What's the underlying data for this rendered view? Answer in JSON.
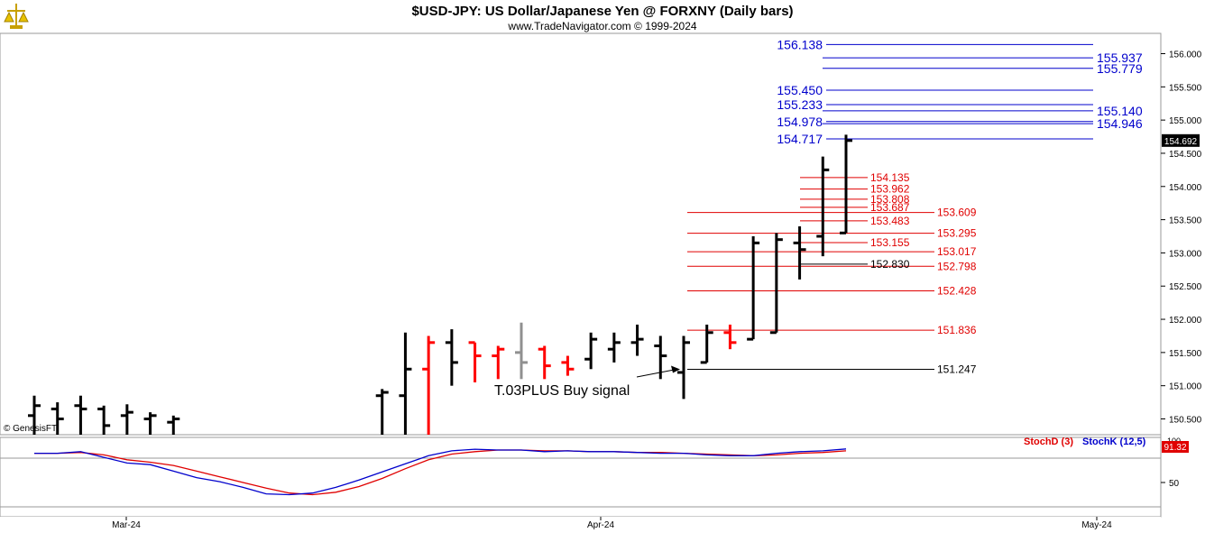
{
  "header": {
    "title": "$USD-JPY:  US Dollar/Japanese Yen @ FORXNY  (Daily bars)",
    "subtitle": "www.TradeNavigator.com © 1999-2024",
    "logo_icon": "trade-navigator-logo-icon"
  },
  "copyright": "© GenesisFT",
  "annotation": {
    "text": "T.03PLUS Buy signal"
  },
  "colors": {
    "up_bar": "#000000",
    "down_bar": "#ff0000",
    "neutral_bar": "#909090",
    "blue_levels": "#0000cc",
    "red_levels": "#e00000",
    "stoch_d": "#e00000",
    "stoch_k": "#0000cc",
    "last_price_bg": "#000000",
    "stoch_value_bg": "#e00000"
  },
  "chart_data": [
    {
      "type": "ohlc",
      "x_ticks": [
        "Mar-24",
        "Apr-24",
        "May-24"
      ],
      "y_ticks": [
        "150.500",
        "151.000",
        "151.500",
        "152.000",
        "152.500",
        "153.000",
        "153.500",
        "154.000",
        "154.500",
        "155.000",
        "155.500",
        "156.000"
      ],
      "ylim": [
        150.2,
        156.6
      ],
      "last_price": "154.692",
      "bars": [
        {
          "x": 1,
          "o": 150.55,
          "h": 150.85,
          "l": 150.2,
          "c": 150.7,
          "color": "up"
        },
        {
          "x": 2,
          "o": 150.65,
          "h": 150.75,
          "l": 150.2,
          "c": 150.5,
          "color": "up"
        },
        {
          "x": 3,
          "o": 150.7,
          "h": 150.85,
          "l": 150.2,
          "c": 150.65,
          "color": "up"
        },
        {
          "x": 4,
          "o": 150.65,
          "h": 150.7,
          "l": 150.2,
          "c": 150.4,
          "color": "up"
        },
        {
          "x": 5,
          "o": 150.55,
          "h": 150.72,
          "l": 150.2,
          "c": 150.6,
          "color": "up"
        },
        {
          "x": 6,
          "o": 150.5,
          "h": 150.6,
          "l": 150.2,
          "c": 150.55,
          "color": "up"
        },
        {
          "x": 7,
          "o": 150.45,
          "h": 150.55,
          "l": 150.2,
          "c": 150.5,
          "color": "up"
        },
        {
          "x": 16,
          "o": 150.85,
          "h": 150.95,
          "l": 150.2,
          "c": 150.9,
          "color": "up"
        },
        {
          "x": 17,
          "o": 150.85,
          "h": 151.8,
          "l": 150.2,
          "c": 151.25,
          "color": "up"
        },
        {
          "x": 18,
          "o": 151.25,
          "h": 151.75,
          "l": 150.2,
          "c": 151.65,
          "color": "down"
        },
        {
          "x": 19,
          "o": 151.65,
          "h": 151.85,
          "l": 151.0,
          "c": 151.35,
          "color": "up"
        },
        {
          "x": 20,
          "o": 151.65,
          "h": 151.65,
          "l": 151.05,
          "c": 151.45,
          "color": "down"
        },
        {
          "x": 21,
          "o": 151.45,
          "h": 151.6,
          "l": 151.1,
          "c": 151.55,
          "color": "down"
        },
        {
          "x": 22,
          "o": 151.5,
          "h": 151.95,
          "l": 151.1,
          "c": 151.35,
          "color": "neutral"
        },
        {
          "x": 23,
          "o": 151.55,
          "h": 151.6,
          "l": 151.1,
          "c": 151.3,
          "color": "down"
        },
        {
          "x": 24,
          "o": 151.35,
          "h": 151.45,
          "l": 151.15,
          "c": 151.25,
          "color": "down"
        },
        {
          "x": 25,
          "o": 151.4,
          "h": 151.8,
          "l": 151.25,
          "c": 151.7,
          "color": "up"
        },
        {
          "x": 26,
          "o": 151.55,
          "h": 151.8,
          "l": 151.35,
          "c": 151.65,
          "color": "up"
        },
        {
          "x": 27,
          "o": 151.65,
          "h": 151.92,
          "l": 151.45,
          "c": 151.7,
          "color": "up"
        },
        {
          "x": 28,
          "o": 151.6,
          "h": 151.75,
          "l": 151.1,
          "c": 151.45,
          "color": "up"
        },
        {
          "x": 29,
          "o": 151.2,
          "h": 151.75,
          "l": 150.8,
          "c": 151.65,
          "color": "up"
        },
        {
          "x": 30,
          "o": 151.35,
          "h": 151.92,
          "l": 151.35,
          "c": 151.8,
          "color": "up"
        },
        {
          "x": 31,
          "o": 151.8,
          "h": 151.92,
          "l": 151.55,
          "c": 151.65,
          "color": "down"
        },
        {
          "x": 32,
          "o": 151.7,
          "h": 153.25,
          "l": 151.7,
          "c": 153.15,
          "color": "up"
        },
        {
          "x": 33,
          "o": 151.8,
          "h": 153.3,
          "l": 151.8,
          "c": 153.2,
          "color": "up"
        },
        {
          "x": 34,
          "o": 153.15,
          "h": 153.4,
          "l": 152.6,
          "c": 153.05,
          "color": "up"
        },
        {
          "x": 35,
          "o": 153.25,
          "h": 154.45,
          "l": 152.95,
          "c": 154.25,
          "color": "up"
        },
        {
          "x": 36,
          "o": 153.3,
          "h": 154.78,
          "l": 153.3,
          "c": 154.692,
          "color": "up"
        }
      ],
      "buy_signal": {
        "x": 29,
        "y": 151.247
      },
      "blue_levels": [
        {
          "value": 156.138,
          "label": "156.138",
          "label_side": "left"
        },
        {
          "value": 155.937,
          "label": "155.937",
          "label_side": "right"
        },
        {
          "value": 155.779,
          "label": "155.779",
          "label_side": "right"
        },
        {
          "value": 155.45,
          "label": "155.450",
          "label_side": "left"
        },
        {
          "value": 155.233,
          "label": "155.233",
          "label_side": "left"
        },
        {
          "value": 155.14,
          "label": "155.140",
          "label_side": "right"
        },
        {
          "value": 154.978,
          "label": "154.978",
          "label_side": "left"
        },
        {
          "value": 154.946,
          "label": "154.946",
          "label_side": "right"
        },
        {
          "value": 154.717,
          "label": "154.717",
          "label_side": "left"
        }
      ],
      "red_levels": [
        {
          "value": 154.135,
          "label": "154.135",
          "group": "short"
        },
        {
          "value": 153.962,
          "label": "153.962",
          "group": "short"
        },
        {
          "value": 153.808,
          "label": "153.808",
          "group": "short"
        },
        {
          "value": 153.687,
          "label": "153.687",
          "group": "short"
        },
        {
          "value": 153.483,
          "label": "153.483",
          "group": "short"
        },
        {
          "value": 153.155,
          "label": "153.155",
          "group": "short"
        },
        {
          "value": 153.609,
          "label": "153.609",
          "group": "long"
        },
        {
          "value": 153.295,
          "label": "153.295",
          "group": "long"
        },
        {
          "value": 153.017,
          "label": "153.017",
          "group": "long"
        },
        {
          "value": 152.798,
          "label": "152.798",
          "group": "long"
        },
        {
          "value": 152.428,
          "label": "152.428",
          "group": "long"
        },
        {
          "value": 151.836,
          "label": "151.836",
          "group": "long"
        }
      ],
      "black_levels": [
        {
          "value": 152.83,
          "label": "152.830",
          "group": "short"
        },
        {
          "value": 151.247,
          "label": "151.247",
          "group": "long"
        }
      ]
    },
    {
      "type": "line",
      "title_d": "StochD (3)",
      "title_k": "StochK (12,5)",
      "y_ticks": [
        "50"
      ],
      "top_tick": "100",
      "value_label": "91.32",
      "ylim": [
        0,
        100
      ],
      "x": [
        1,
        2,
        3,
        4,
        5,
        6,
        7,
        8,
        9,
        10,
        11,
        12,
        13,
        14,
        15,
        16,
        17,
        18,
        19,
        20,
        21,
        22,
        23,
        24,
        25,
        26,
        27,
        28,
        29,
        30,
        31,
        32,
        33,
        34,
        35,
        36
      ],
      "series": [
        {
          "name": "StochD (3)",
          "values": [
            86,
            86,
            87,
            84,
            78,
            75,
            71,
            64,
            57,
            50,
            43,
            37,
            35,
            38,
            45,
            55,
            67,
            78,
            85,
            88,
            90,
            90,
            89,
            89,
            88,
            88,
            87,
            87,
            86,
            85,
            84,
            83,
            84,
            86,
            87,
            89
          ]
        },
        {
          "name": "StochK (12,5)",
          "values": [
            86,
            86,
            88,
            81,
            74,
            72,
            64,
            56,
            51,
            44,
            36,
            35,
            37,
            44,
            53,
            63,
            73,
            83,
            89,
            91,
            90,
            90,
            88,
            89,
            88,
            88,
            87,
            86,
            86,
            84,
            83,
            83,
            86,
            88,
            89,
            91.32
          ]
        }
      ]
    }
  ]
}
